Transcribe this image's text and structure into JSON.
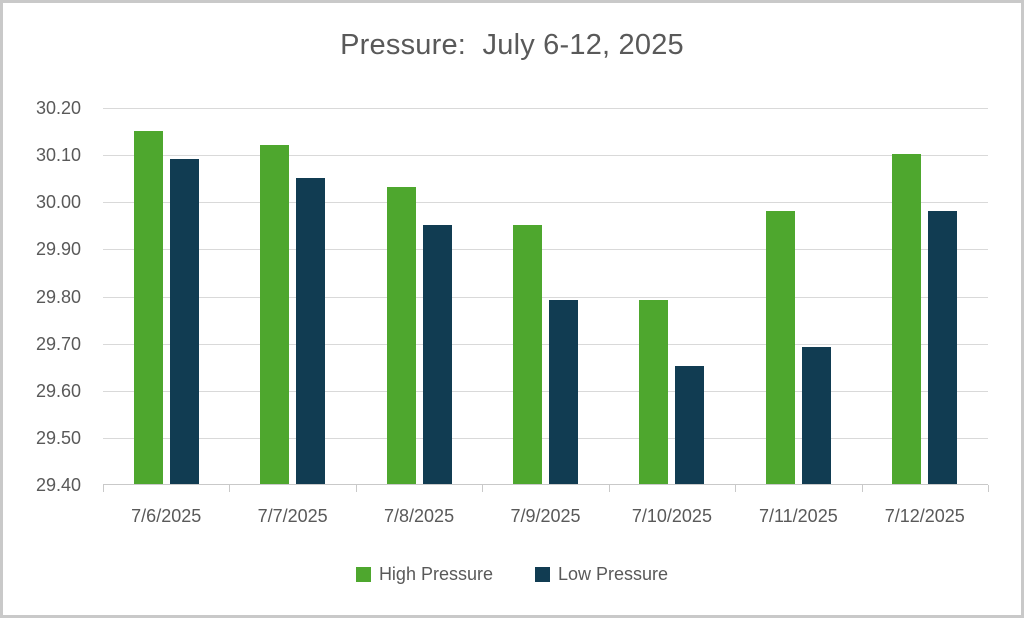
{
  "chart_data": {
    "type": "bar",
    "title": "Pressure:  July 6-12, 2025",
    "categories": [
      "7/6/2025",
      "7/7/2025",
      "7/8/2025",
      "7/9/2025",
      "7/10/2025",
      "7/11/2025",
      "7/12/2025"
    ],
    "series": [
      {
        "name": "High Pressure",
        "color": "#4ea72e",
        "values": [
          30.15,
          30.12,
          30.03,
          29.95,
          29.79,
          29.98,
          30.1
        ]
      },
      {
        "name": "Low Pressure",
        "color": "#113c52",
        "values": [
          30.09,
          30.05,
          29.95,
          29.79,
          29.65,
          29.69,
          29.98
        ]
      }
    ],
    "ylim": [
      29.4,
      30.2
    ],
    "ytick_step": 0.1,
    "ytick_labels": [
      "30.20",
      "30.10",
      "30.00",
      "29.90",
      "29.80",
      "29.70",
      "29.60",
      "29.50",
      "29.40"
    ],
    "grid": true,
    "legend_position": "bottom"
  },
  "style": {
    "gridline_color": "#d9d9d9",
    "axis_color": "#c9c9c9",
    "label_color": "#595959",
    "title_color": "#595959",
    "canvas_border_color": "#c9c9c9",
    "background": "#ffffff"
  }
}
